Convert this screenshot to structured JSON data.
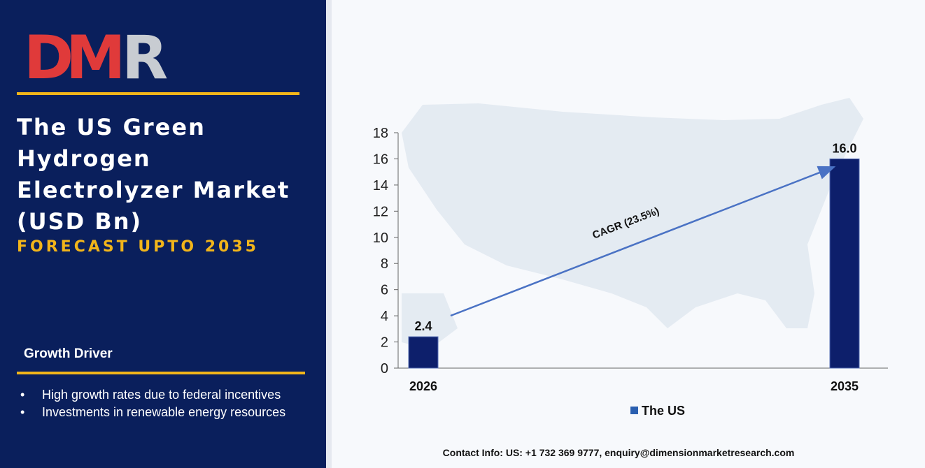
{
  "logo": {
    "text": "DMR",
    "colors": {
      "D": "#e03a3a",
      "M": "#e03a3a",
      "R": "#c8ccd2"
    }
  },
  "title": "The US Green Hydrogen Electrolyzer Market (USD Bn)",
  "subtitle": "FORECAST UPTO 2035",
  "growth": {
    "heading": "Growth Driver",
    "items": [
      "High growth rates due to federal incentives",
      "Investments in renewable energy resources"
    ]
  },
  "contact": "Contact Info: US: +1 732 369 9777, enquiry@dimensionmarketresearch.com",
  "colors": {
    "panel": "#0a1f5c",
    "accent": "#f2b51a",
    "bar": "#0d1f6b",
    "arrow": "#4a72c4"
  },
  "chart_data": {
    "type": "bar",
    "categories": [
      "2026",
      "2035"
    ],
    "series": [
      {
        "name": "The US",
        "values": [
          2.4,
          16.0
        ]
      }
    ],
    "value_labels": [
      "2.4",
      "16.0"
    ],
    "ylim": [
      0,
      18
    ],
    "yticks": [
      0,
      2,
      4,
      6,
      8,
      10,
      12,
      14,
      16,
      18
    ],
    "annotation": "CAGR (23.5%)",
    "legend_position": "bottom",
    "background_image": "us-map-icon"
  }
}
